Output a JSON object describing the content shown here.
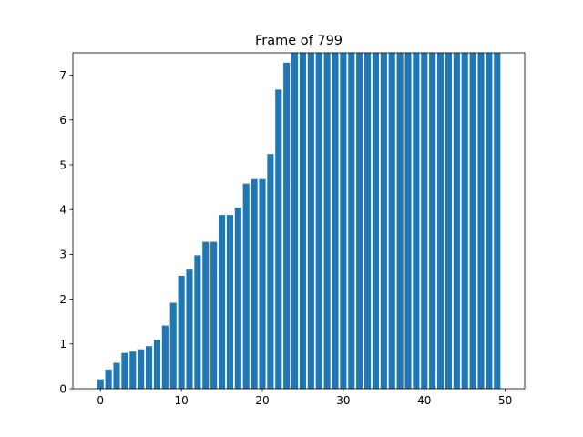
{
  "chart_data": {
    "type": "bar",
    "title": "Frame of 799",
    "xlabel": "",
    "ylabel": "",
    "x": [
      0,
      1,
      2,
      3,
      4,
      5,
      6,
      7,
      8,
      9,
      10,
      11,
      12,
      13,
      14,
      15,
      16,
      17,
      18,
      19,
      20,
      21,
      22,
      23,
      24,
      25,
      26,
      27,
      28,
      29,
      30,
      31,
      32,
      33,
      34,
      35,
      36,
      37,
      38,
      39,
      40,
      41,
      42,
      43,
      44,
      45,
      46,
      47,
      48,
      49
    ],
    "values": [
      0.21,
      0.43,
      0.58,
      0.8,
      0.83,
      0.88,
      0.95,
      1.09,
      1.41,
      1.92,
      2.52,
      2.66,
      2.98,
      3.28,
      3.28,
      3.88,
      3.88,
      4.04,
      4.58,
      4.68,
      4.68,
      5.24,
      6.68,
      7.28,
      7.5,
      7.5,
      7.5,
      7.5,
      7.5,
      7.5,
      7.5,
      7.5,
      7.5,
      7.5,
      7.5,
      7.5,
      7.5,
      7.5,
      7.5,
      7.5,
      7.5,
      7.5,
      7.5,
      7.5,
      7.5,
      7.5,
      7.5,
      7.5,
      7.5,
      7.5
    ],
    "xlim": [
      -3.4,
      52.4
    ],
    "ylim": [
      0,
      7.5
    ],
    "xticks": [
      0,
      10,
      20,
      30,
      40,
      50
    ],
    "yticks": [
      0,
      1,
      2,
      3,
      4,
      5,
      6,
      7
    ],
    "bar_color": "#1f77b4",
    "grid": false,
    "legend": "none"
  }
}
